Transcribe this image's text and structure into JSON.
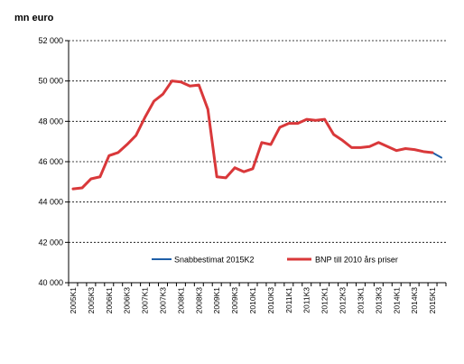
{
  "chart_data": {
    "type": "line",
    "ylabel": "mn  euro",
    "ylim": [
      40000,
      52000
    ],
    "yticks": [
      "40 000",
      "42 000",
      "44 000",
      "46 000",
      "48 000",
      "50 000",
      "52 000"
    ],
    "ytick_values": [
      40000,
      42000,
      44000,
      46000,
      48000,
      50000,
      52000
    ],
    "grid": "horizontal dashed",
    "legend_placement": "inside-lower-center",
    "categories": [
      "2005K1",
      "2005K2",
      "2005K3",
      "2005K4",
      "2006K1",
      "2006K2",
      "2006K3",
      "2006K4",
      "2007K1",
      "2007K2",
      "2007K3",
      "2007K4",
      "2008K1",
      "2008K2",
      "2008K3",
      "2008K4",
      "2009K1",
      "2009K2",
      "2009K3",
      "2009K4",
      "2010K1",
      "2010K2",
      "2010K3",
      "2010K4",
      "2011K1",
      "2011K2",
      "2011K3",
      "2011K4",
      "2012K1",
      "2012K2",
      "2012K3",
      "2012K4",
      "2013K1",
      "2013K2",
      "2013K3",
      "2013K4",
      "2014K1",
      "2014K2",
      "2014K3",
      "2014K4",
      "2015K1",
      "2015K2"
    ],
    "tick_labels": [
      "2005K1",
      "2005K3",
      "2006K1",
      "2006K3",
      "2007K1",
      "2007K3",
      "2008K1",
      "2008K3",
      "2009K1",
      "2009K3",
      "2010K1",
      "2010K3",
      "2011K1",
      "2011K3",
      "2012K1",
      "2012K3",
      "2013K1",
      "2013K3",
      "2014K1",
      "2014K3",
      "2015K1"
    ],
    "series": [
      {
        "name": "Snabbestimat 2015K2",
        "color": "#1f5fa8",
        "values": [
          null,
          null,
          null,
          null,
          null,
          null,
          null,
          null,
          null,
          null,
          null,
          null,
          null,
          null,
          null,
          null,
          null,
          null,
          null,
          null,
          null,
          null,
          null,
          null,
          null,
          null,
          null,
          null,
          null,
          null,
          null,
          null,
          null,
          null,
          null,
          null,
          null,
          null,
          null,
          null,
          46450,
          46200
        ]
      },
      {
        "name": "BNP till 2010 års priser",
        "color": "#d9383a",
        "values": [
          44650,
          44700,
          45150,
          45250,
          46300,
          46450,
          46850,
          47300,
          48200,
          49000,
          49350,
          50000,
          49950,
          49750,
          49800,
          48600,
          45250,
          45200,
          45700,
          45500,
          45650,
          46950,
          46850,
          47700,
          47900,
          47900,
          48100,
          48050,
          48100,
          47350,
          47050,
          46700,
          46700,
          46750,
          46950,
          46750,
          46550,
          46650,
          46600,
          46500,
          46450,
          null
        ]
      }
    ]
  }
}
